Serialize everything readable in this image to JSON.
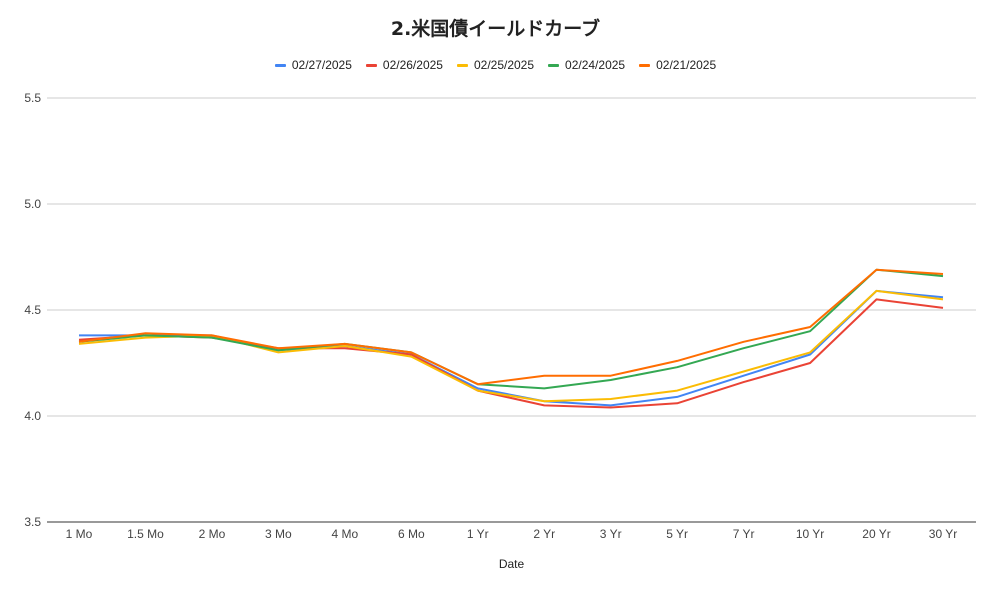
{
  "chart_data": {
    "type": "line",
    "title": "2.米国債イールドカーブ",
    "xlabel": "Date",
    "ylabel": "",
    "categories": [
      "1 Mo",
      "1.5 Mo",
      "2 Mo",
      "3 Mo",
      "4 Mo",
      "6 Mo",
      "1 Yr",
      "2 Yr",
      "3 Yr",
      "5 Yr",
      "7 Yr",
      "10 Yr",
      "20 Yr",
      "30 Yr"
    ],
    "ylim": [
      3.5,
      5.5
    ],
    "yticks": [
      "3.5",
      "4.0",
      "4.5",
      "5.0",
      "5.5"
    ],
    "grid": true,
    "legend_position": "top",
    "series": [
      {
        "name": "02/27/2025",
        "color": "#4285f4",
        "values": [
          4.38,
          4.38,
          4.38,
          4.31,
          4.33,
          4.29,
          4.13,
          4.07,
          4.05,
          4.09,
          4.19,
          4.29,
          4.59,
          4.56
        ]
      },
      {
        "name": "02/26/2025",
        "color": "#ea4335",
        "values": [
          4.36,
          4.38,
          4.37,
          4.32,
          4.32,
          4.29,
          4.12,
          4.05,
          4.04,
          4.06,
          4.16,
          4.25,
          4.55,
          4.51
        ]
      },
      {
        "name": "02/25/2025",
        "color": "#fbbc04",
        "values": [
          4.34,
          4.37,
          4.38,
          4.3,
          4.33,
          4.28,
          4.12,
          4.07,
          4.08,
          4.12,
          4.21,
          4.3,
          4.59,
          4.55
        ]
      },
      {
        "name": "02/24/2025",
        "color": "#34a853",
        "values": [
          4.35,
          4.38,
          4.37,
          4.31,
          4.34,
          4.3,
          4.15,
          4.13,
          4.17,
          4.23,
          4.32,
          4.4,
          4.69,
          4.66
        ]
      },
      {
        "name": "02/21/2025",
        "color": "#ff6d01",
        "values": [
          4.35,
          4.39,
          4.38,
          4.32,
          4.34,
          4.3,
          4.15,
          4.19,
          4.19,
          4.26,
          4.35,
          4.42,
          4.69,
          4.67
        ]
      }
    ]
  }
}
